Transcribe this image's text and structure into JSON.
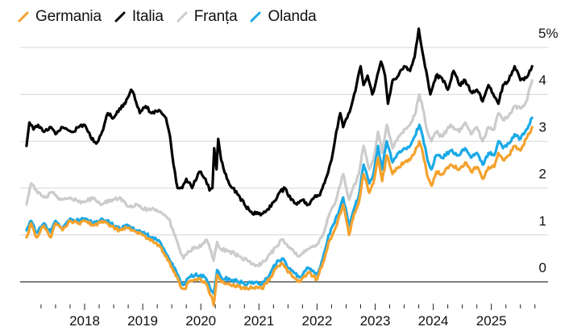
{
  "chart_data": {
    "type": "line",
    "title": "",
    "xlabel": "",
    "ylabel": "",
    "ylim": [
      0,
      5
    ],
    "xlim": [
      2017.0,
      2025.75
    ],
    "grid": true,
    "legend_position": "top-left",
    "y_ticks": [
      {
        "value": 0,
        "label": "0"
      },
      {
        "value": 1,
        "label": "1"
      },
      {
        "value": 2,
        "label": "2"
      },
      {
        "value": 3,
        "label": "3"
      },
      {
        "value": 4,
        "label": "4"
      },
      {
        "value": 5,
        "label": "5%"
      }
    ],
    "x_ticks": [
      {
        "value": 2018,
        "label": "2018"
      },
      {
        "value": 2019,
        "label": "2019"
      },
      {
        "value": 2020,
        "label": "2020"
      },
      {
        "value": 2021,
        "label": "2021"
      },
      {
        "value": 2022,
        "label": "2022"
      },
      {
        "value": 2023,
        "label": "2023"
      },
      {
        "value": 2024,
        "label": "2024"
      },
      {
        "value": 2025,
        "label": "2025"
      }
    ],
    "minor_tick_interval_years": 0.25,
    "series": [
      {
        "name": "Franța",
        "color": "#cccccc",
        "x": [
          2017.0,
          2017.08,
          2017.17,
          2017.3,
          2017.45,
          2017.6,
          2017.75,
          2017.9,
          2018.0,
          2018.15,
          2018.3,
          2018.45,
          2018.6,
          2018.75,
          2018.9,
          2019.0,
          2019.15,
          2019.3,
          2019.45,
          2019.55,
          2019.62,
          2019.7,
          2019.8,
          2019.9,
          2020.0,
          2020.1,
          2020.18,
          2020.22,
          2020.28,
          2020.35,
          2020.5,
          2020.65,
          2020.8,
          2020.95,
          2021.05,
          2021.2,
          2021.3,
          2021.4,
          2021.5,
          2021.6,
          2021.7,
          2021.85,
          2022.0,
          2022.1,
          2022.2,
          2022.3,
          2022.45,
          2022.55,
          2022.62,
          2022.72,
          2022.8,
          2022.9,
          2022.97,
          2023.05,
          2023.12,
          2023.2,
          2023.3,
          2023.4,
          2023.5,
          2023.6,
          2023.68,
          2023.76,
          2023.82,
          2023.9,
          2023.97,
          2024.05,
          2024.15,
          2024.3,
          2024.45,
          2024.55,
          2024.65,
          2024.75,
          2024.85,
          2024.95,
          2025.05,
          2025.12,
          2025.2,
          2025.3,
          2025.4,
          2025.5,
          2025.6,
          2025.7
        ],
        "values": [
          1.65,
          2.1,
          1.95,
          1.8,
          1.9,
          1.75,
          1.8,
          1.7,
          1.7,
          1.8,
          1.65,
          1.75,
          1.8,
          1.6,
          1.65,
          1.55,
          1.55,
          1.5,
          1.35,
          1.0,
          0.75,
          0.5,
          0.65,
          0.75,
          0.75,
          0.9,
          0.65,
          0.45,
          0.85,
          0.7,
          0.65,
          0.55,
          0.45,
          0.35,
          0.4,
          0.6,
          0.75,
          0.9,
          0.75,
          0.65,
          0.55,
          0.7,
          0.8,
          1.0,
          1.4,
          1.65,
          2.3,
          1.75,
          2.0,
          2.3,
          2.9,
          2.4,
          2.6,
          3.2,
          2.75,
          3.35,
          2.85,
          3.1,
          3.25,
          3.35,
          3.55,
          4.0,
          3.7,
          3.2,
          3.0,
          3.2,
          3.1,
          3.35,
          3.2,
          3.4,
          3.15,
          3.3,
          3.0,
          3.3,
          3.25,
          3.6,
          3.45,
          3.55,
          3.75,
          3.7,
          3.85,
          4.3
        ]
      },
      {
        "name": "Italia",
        "color": "#000000",
        "x": [
          2017.0,
          2017.05,
          2017.12,
          2017.2,
          2017.3,
          2017.4,
          2017.5,
          2017.6,
          2017.7,
          2017.8,
          2017.9,
          2018.0,
          2018.1,
          2018.2,
          2018.3,
          2018.4,
          2018.5,
          2018.6,
          2018.7,
          2018.8,
          2018.85,
          2018.95,
          2019.05,
          2019.15,
          2019.3,
          2019.4,
          2019.47,
          2019.53,
          2019.6,
          2019.68,
          2019.75,
          2019.85,
          2019.95,
          2020.0,
          2020.08,
          2020.15,
          2020.2,
          2020.23,
          2020.27,
          2020.3,
          2020.35,
          2020.45,
          2020.55,
          2020.65,
          2020.75,
          2020.85,
          2020.95,
          2021.05,
          2021.15,
          2021.25,
          2021.35,
          2021.45,
          2021.55,
          2021.65,
          2021.75,
          2021.85,
          2021.95,
          2022.05,
          2022.15,
          2022.25,
          2022.33,
          2022.4,
          2022.45,
          2022.52,
          2022.6,
          2022.68,
          2022.75,
          2022.8,
          2022.87,
          2022.95,
          2023.02,
          2023.1,
          2023.17,
          2023.22,
          2023.3,
          2023.4,
          2023.5,
          2023.6,
          2023.68,
          2023.75,
          2023.8,
          2023.88,
          2023.95,
          2024.05,
          2024.15,
          2024.25,
          2024.35,
          2024.45,
          2024.55,
          2024.65,
          2024.75,
          2024.85,
          2024.95,
          2025.05,
          2025.12,
          2025.2,
          2025.3,
          2025.4,
          2025.5,
          2025.6,
          2025.7
        ],
        "values": [
          2.9,
          3.4,
          3.25,
          3.35,
          3.2,
          3.3,
          3.15,
          3.3,
          3.25,
          3.2,
          3.3,
          3.35,
          3.1,
          2.95,
          3.2,
          3.6,
          3.5,
          3.7,
          3.8,
          4.1,
          4.0,
          3.6,
          3.75,
          3.6,
          3.65,
          3.5,
          3.1,
          2.5,
          2.0,
          2.0,
          2.2,
          2.0,
          2.3,
          2.35,
          2.2,
          1.95,
          2.0,
          2.85,
          2.4,
          3.05,
          2.6,
          2.2,
          2.0,
          1.85,
          1.65,
          1.5,
          1.45,
          1.45,
          1.55,
          1.7,
          1.9,
          2.0,
          1.75,
          1.65,
          1.75,
          1.65,
          1.8,
          1.85,
          2.2,
          2.6,
          3.2,
          3.6,
          3.3,
          3.5,
          3.8,
          4.2,
          4.6,
          4.2,
          4.4,
          4.0,
          4.3,
          4.7,
          4.4,
          3.8,
          4.3,
          4.4,
          4.6,
          4.5,
          4.8,
          5.4,
          5.0,
          4.5,
          4.0,
          4.4,
          4.35,
          4.1,
          4.5,
          4.2,
          4.3,
          4.05,
          4.1,
          3.85,
          4.2,
          3.95,
          3.8,
          4.2,
          4.3,
          4.6,
          4.3,
          4.35,
          4.6
        ]
      },
      {
        "name": "Olanda",
        "color": "#1ba9e6",
        "x": [
          2017.0,
          2017.08,
          2017.17,
          2017.3,
          2017.42,
          2017.5,
          2017.62,
          2017.75,
          2017.9,
          2018.0,
          2018.15,
          2018.3,
          2018.45,
          2018.6,
          2018.75,
          2018.9,
          2019.0,
          2019.15,
          2019.3,
          2019.45,
          2019.55,
          2019.65,
          2019.72,
          2019.8,
          2019.9,
          2020.0,
          2020.1,
          2020.18,
          2020.22,
          2020.28,
          2020.35,
          2020.5,
          2020.65,
          2020.8,
          2020.95,
          2021.05,
          2021.2,
          2021.3,
          2021.4,
          2021.5,
          2021.6,
          2021.7,
          2021.85,
          2022.0,
          2022.1,
          2022.2,
          2022.3,
          2022.45,
          2022.55,
          2022.62,
          2022.72,
          2022.8,
          2022.9,
          2022.97,
          2023.05,
          2023.12,
          2023.2,
          2023.3,
          2023.4,
          2023.5,
          2023.6,
          2023.68,
          2023.76,
          2023.82,
          2023.9,
          2023.97,
          2024.05,
          2024.15,
          2024.3,
          2024.45,
          2024.55,
          2024.65,
          2024.75,
          2024.85,
          2024.95,
          2025.05,
          2025.12,
          2025.2,
          2025.3,
          2025.4,
          2025.5,
          2025.6,
          2025.7
        ],
        "values": [
          1.1,
          1.3,
          1.05,
          1.25,
          1.05,
          1.3,
          1.15,
          1.35,
          1.3,
          1.35,
          1.25,
          1.35,
          1.25,
          1.15,
          1.2,
          1.1,
          1.05,
          0.95,
          0.85,
          0.5,
          0.3,
          0.0,
          -0.05,
          0.1,
          0.15,
          0.15,
          0.05,
          -0.2,
          -0.25,
          0.25,
          0.1,
          0.05,
          0.0,
          -0.05,
          0.0,
          -0.05,
          0.2,
          0.4,
          0.5,
          0.3,
          0.2,
          0.1,
          0.3,
          0.15,
          0.5,
          1.0,
          1.25,
          1.8,
          1.2,
          1.5,
          1.85,
          2.5,
          2.1,
          2.3,
          2.9,
          2.4,
          3.0,
          2.55,
          2.75,
          2.85,
          2.9,
          3.1,
          3.35,
          3.1,
          2.6,
          2.4,
          2.7,
          2.65,
          2.8,
          2.7,
          2.85,
          2.65,
          2.75,
          2.5,
          2.75,
          2.7,
          3.0,
          2.85,
          2.95,
          3.15,
          3.05,
          3.25,
          3.5
        ]
      },
      {
        "name": "Germania",
        "color": "#f4a22e",
        "x": [
          2017.0,
          2017.08,
          2017.17,
          2017.3,
          2017.42,
          2017.5,
          2017.62,
          2017.75,
          2017.9,
          2018.0,
          2018.15,
          2018.3,
          2018.45,
          2018.6,
          2018.75,
          2018.9,
          2019.0,
          2019.15,
          2019.3,
          2019.45,
          2019.55,
          2019.65,
          2019.72,
          2019.8,
          2019.9,
          2020.0,
          2020.1,
          2020.18,
          2020.22,
          2020.28,
          2020.35,
          2020.5,
          2020.65,
          2020.8,
          2020.95,
          2021.05,
          2021.2,
          2021.3,
          2021.4,
          2021.5,
          2021.6,
          2021.7,
          2021.85,
          2022.0,
          2022.1,
          2022.2,
          2022.3,
          2022.45,
          2022.55,
          2022.62,
          2022.72,
          2022.8,
          2022.9,
          2022.97,
          2023.05,
          2023.12,
          2023.2,
          2023.3,
          2023.4,
          2023.5,
          2023.6,
          2023.68,
          2023.76,
          2023.82,
          2023.9,
          2023.97,
          2024.05,
          2024.15,
          2024.3,
          2024.45,
          2024.55,
          2024.65,
          2024.75,
          2024.85,
          2024.95,
          2025.05,
          2025.12,
          2025.2,
          2025.3,
          2025.4,
          2025.5,
          2025.6,
          2025.7
        ],
        "values": [
          0.95,
          1.25,
          0.95,
          1.2,
          0.95,
          1.25,
          1.1,
          1.3,
          1.25,
          1.3,
          1.2,
          1.3,
          1.2,
          1.1,
          1.15,
          1.05,
          1.0,
          0.9,
          0.75,
          0.45,
          0.2,
          -0.1,
          -0.15,
          0.0,
          0.05,
          0.05,
          -0.05,
          -0.3,
          -0.5,
          0.15,
          0.0,
          -0.05,
          -0.1,
          -0.15,
          -0.1,
          -0.15,
          0.1,
          0.3,
          0.4,
          0.2,
          0.1,
          0.0,
          0.2,
          0.05,
          0.4,
          0.85,
          1.1,
          1.65,
          1.0,
          1.35,
          1.7,
          2.3,
          1.9,
          2.1,
          2.65,
          2.15,
          2.7,
          2.3,
          2.45,
          2.55,
          2.6,
          2.75,
          3.0,
          2.75,
          2.25,
          2.05,
          2.35,
          2.3,
          2.5,
          2.4,
          2.55,
          2.35,
          2.45,
          2.2,
          2.45,
          2.45,
          2.75,
          2.6,
          2.7,
          2.9,
          2.8,
          3.05,
          3.3
        ]
      }
    ],
    "legend_order": [
      "Germania",
      "Italia",
      "Franța",
      "Olanda"
    ]
  },
  "legend": [
    {
      "label": "Germania",
      "color": "#f4a22e"
    },
    {
      "label": "Italia",
      "color": "#000000"
    },
    {
      "label": "Franța",
      "color": "#cccccc"
    },
    {
      "label": "Olanda",
      "color": "#1ba9e6"
    }
  ]
}
